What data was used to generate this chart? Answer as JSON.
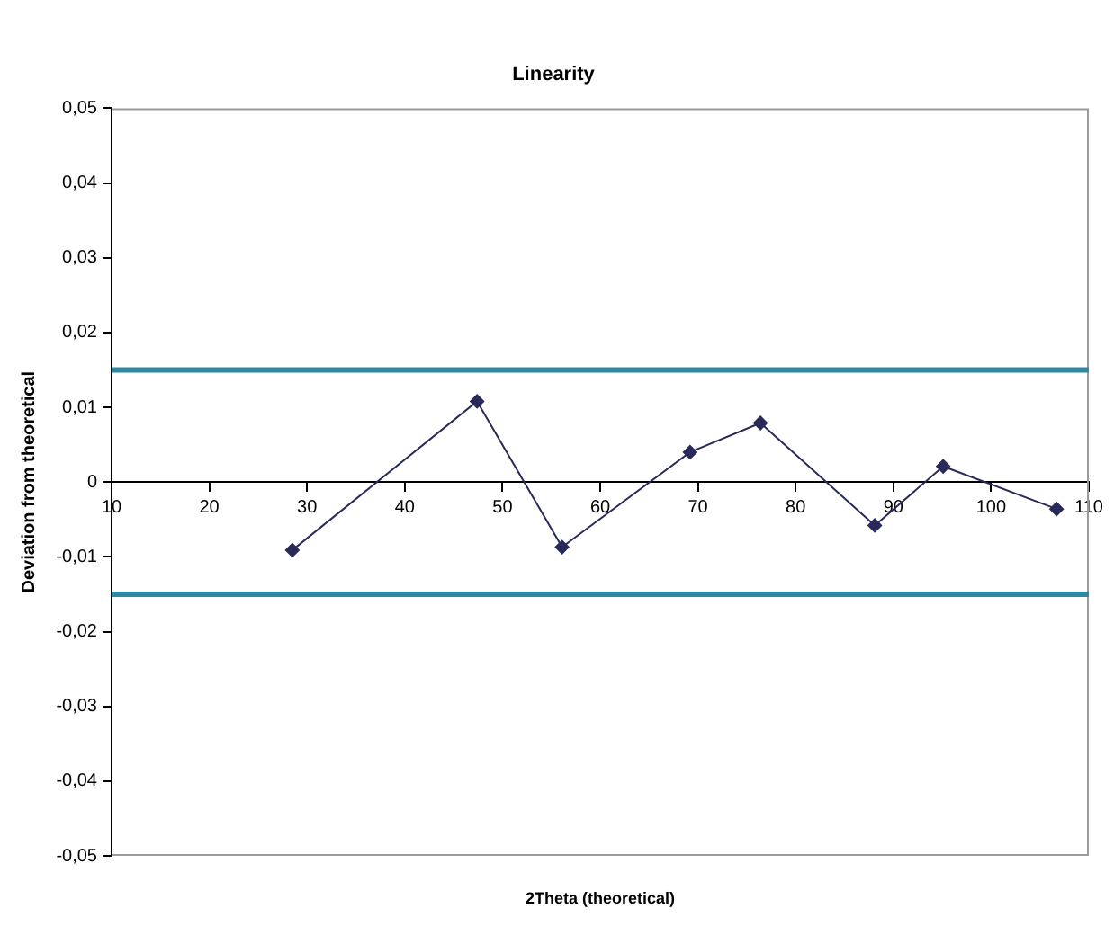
{
  "chart_data": {
    "type": "line",
    "title": "Linearity",
    "xlabel": "2Theta (theoretical)",
    "ylabel": "Deviation from theoretical",
    "x": [
      28.5,
      47.4,
      56.1,
      69.2,
      76.4,
      88.1,
      95.1,
      106.7
    ],
    "series": [
      {
        "color": "#2a2a5a",
        "values": [
          -0.0091,
          0.0108,
          -0.0087,
          0.004,
          0.0079,
          -0.0058,
          0.0021,
          -0.0036
        ]
      }
    ],
    "xlim": [
      10,
      110
    ],
    "xticks": [
      10,
      20,
      30,
      40,
      50,
      60,
      70,
      80,
      90,
      100,
      110
    ],
    "ylim": [
      -0.05,
      0.05
    ],
    "yticks": [
      {
        "value": -0.05,
        "label": "-0,05"
      },
      {
        "value": -0.04,
        "label": "-0,04"
      },
      {
        "value": -0.03,
        "label": "-0,03"
      },
      {
        "value": -0.02,
        "label": "-0,02"
      },
      {
        "value": -0.01,
        "label": "-0,01"
      },
      0,
      {
        "value": 0.01,
        "label": "0,01"
      },
      {
        "value": 0.02,
        "label": "0,02"
      },
      {
        "value": 0.03,
        "label": "0,03"
      },
      {
        "value": 0.04,
        "label": "0,04"
      },
      {
        "value": 0.05,
        "label": "0,05"
      }
    ],
    "ref_lines": [
      {
        "axis": "y",
        "value": 0.015,
        "color": "#2e8aa3"
      },
      {
        "axis": "y",
        "value": -0.015,
        "color": "#2e8aa3"
      }
    ],
    "marker": "diamond",
    "line_style": "solid",
    "grid": false,
    "legend": false
  }
}
